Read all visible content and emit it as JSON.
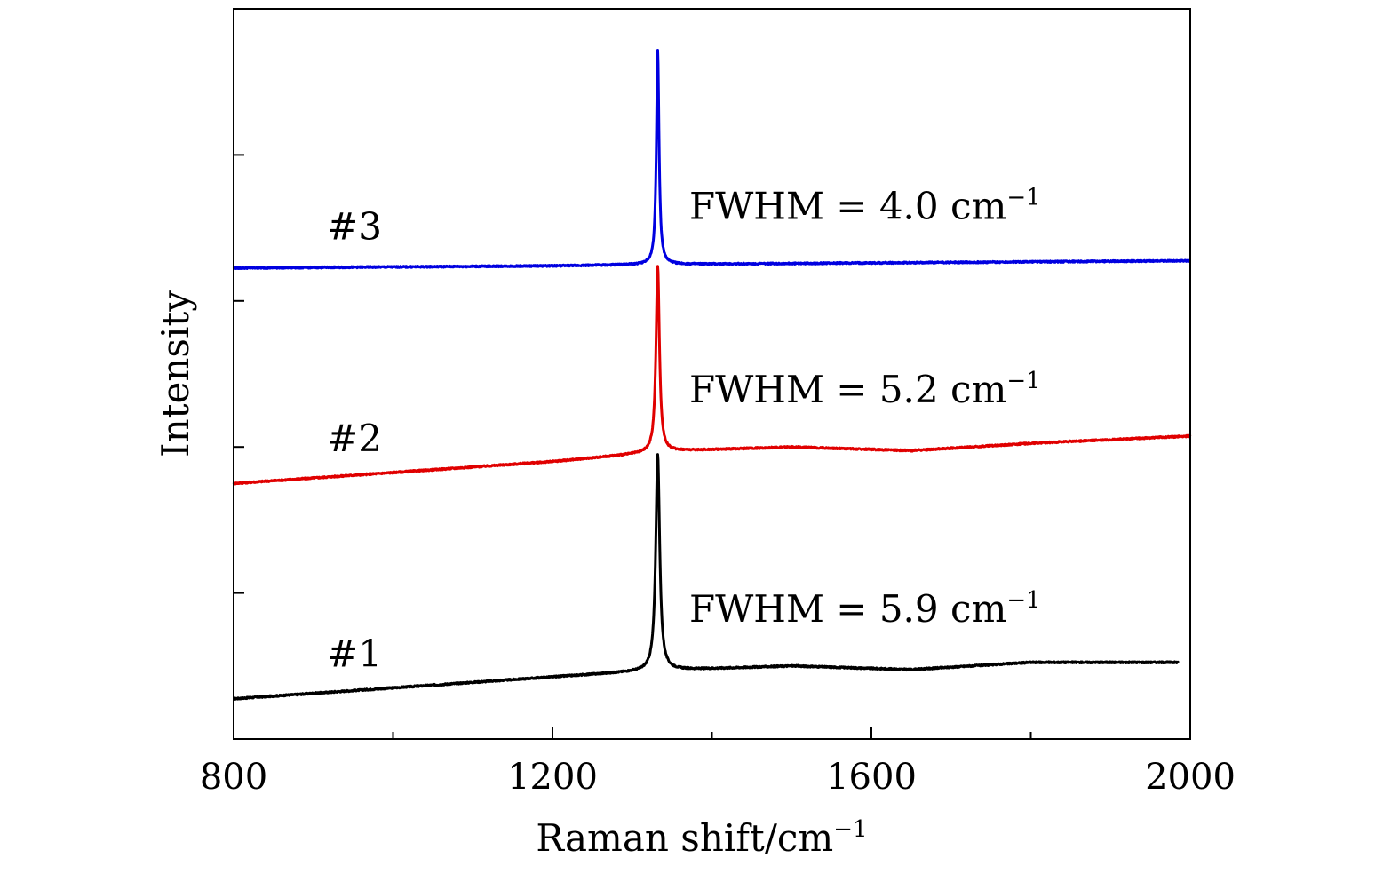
{
  "chart_data": {
    "type": "line",
    "title": "",
    "xlabel": "Raman shift/cm",
    "xlabel_sup": "−1",
    "ylabel": "Intensity",
    "xlim": [
      800,
      2000
    ],
    "ylim": [
      0,
      10
    ],
    "x_ticks": [
      800,
      1200,
      1600,
      2000
    ],
    "x_minor_ticks": [
      1000,
      1400,
      1800
    ],
    "y_ticks": [
      2,
      4,
      6,
      8
    ],
    "y_tick_labels_shown": false,
    "grid": false,
    "legend": "none",
    "peak_position": 1332,
    "series": [
      {
        "name": "#1",
        "color": "#000000",
        "x_end": 1985,
        "baseline": [
          [
            800,
            0.55
          ],
          [
            1000,
            0.7
          ],
          [
            1200,
            0.85
          ],
          [
            1300,
            0.92
          ],
          [
            1360,
            0.95
          ],
          [
            1500,
            1.0
          ],
          [
            1650,
            0.95
          ],
          [
            1800,
            1.05
          ],
          [
            1985,
            1.05
          ]
        ],
        "peak_height": 2.97,
        "fwhm": 5.9,
        "label": "#1",
        "annotation": "FWHM = 5.9 cm",
        "annotation_sup": "−1"
      },
      {
        "name": "#2",
        "color": "#e00000",
        "x_end": 2000,
        "baseline": [
          [
            800,
            3.5
          ],
          [
            1000,
            3.65
          ],
          [
            1200,
            3.8
          ],
          [
            1300,
            3.9
          ],
          [
            1360,
            3.95
          ],
          [
            1500,
            4.0
          ],
          [
            1650,
            3.95
          ],
          [
            1800,
            4.05
          ],
          [
            2000,
            4.15
          ]
        ],
        "peak_height": 2.55,
        "fwhm": 5.2,
        "label": "#2",
        "annotation": "FWHM = 5.2 cm",
        "annotation_sup": "−1"
      },
      {
        "name": "#3",
        "color": "#0000e0",
        "x_end": 2000,
        "baseline": [
          [
            800,
            6.45
          ],
          [
            1200,
            6.48
          ],
          [
            1332,
            6.5
          ],
          [
            1600,
            6.52
          ],
          [
            2000,
            6.55
          ]
        ],
        "peak_height": 2.93,
        "fwhm": 4.0,
        "label": "#3",
        "annotation": "FWHM = 4.0 cm",
        "annotation_sup": "−1"
      }
    ]
  }
}
